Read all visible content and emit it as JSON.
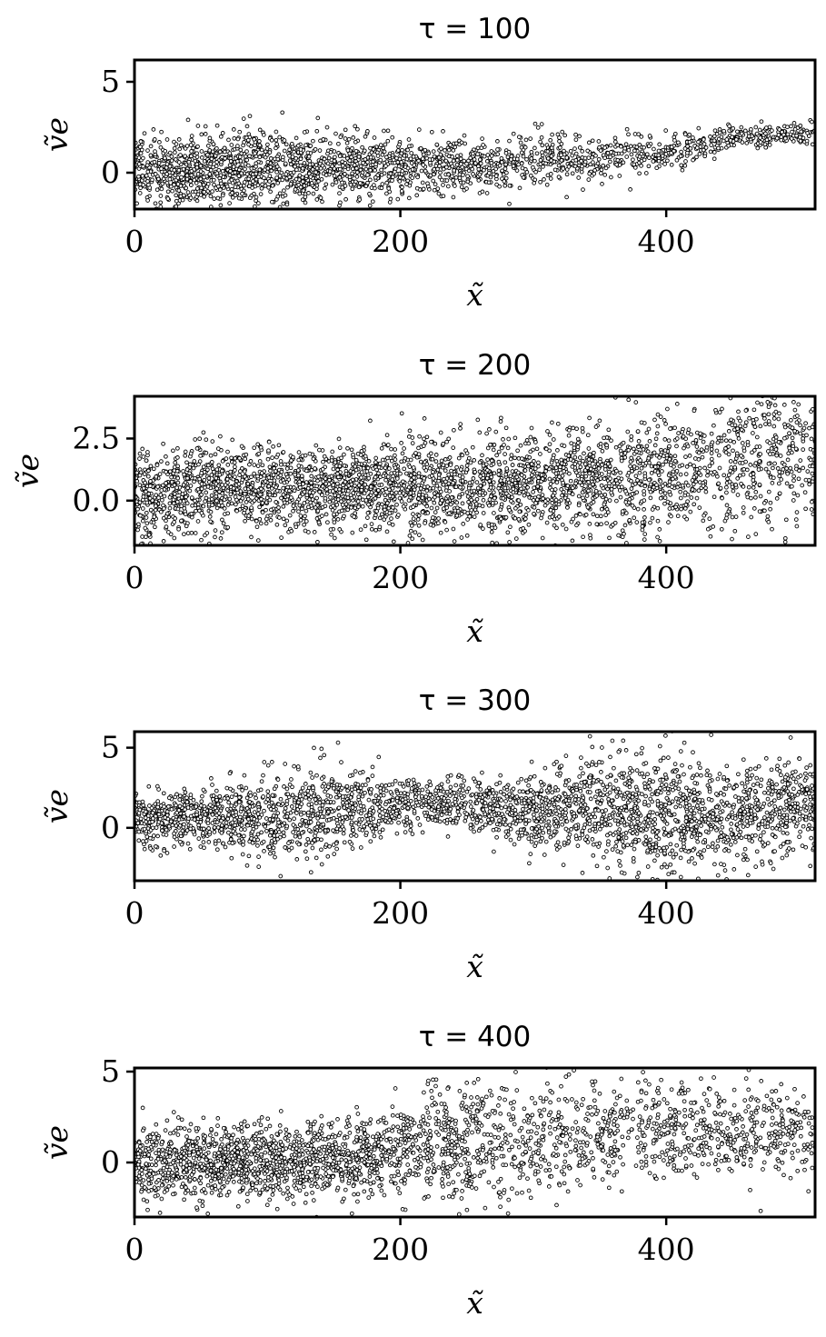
{
  "chart_data": [
    {
      "type": "scatter",
      "title": "τ = 100",
      "xlabel": "x̃",
      "ylabel": "ṽe",
      "xlim": [
        0,
        512
      ],
      "ylim": [
        -2.0,
        6.2
      ],
      "xticks": [
        "0",
        "200",
        "400"
      ],
      "yticks": [
        "0",
        "5"
      ],
      "marker": "small open circle",
      "series_profile": {
        "x": [
          0,
          50,
          100,
          150,
          200,
          250,
          300,
          350,
          400,
          450,
          500
        ],
        "center": [
          0.0,
          0.15,
          0.25,
          0.3,
          0.35,
          0.4,
          0.6,
          0.8,
          1.2,
          1.9,
          2.2
        ],
        "spread": [
          1.0,
          1.0,
          1.0,
          0.9,
          0.8,
          0.7,
          0.7,
          0.6,
          0.5,
          0.35,
          0.3
        ],
        "density": [
          1.0,
          1.0,
          1.0,
          0.9,
          0.7,
          0.6,
          0.5,
          0.45,
          0.4,
          0.35,
          0.35
        ]
      }
    },
    {
      "type": "scatter",
      "title": "τ = 200",
      "xlabel": "x̃",
      "ylabel": "ṽe",
      "xlim": [
        0,
        512
      ],
      "ylim": [
        -1.8,
        4.2
      ],
      "xticks": [
        "0",
        "200",
        "400"
      ],
      "yticks": [
        "0.0",
        "2.5"
      ],
      "marker": "small open circle",
      "series_profile": {
        "x": [
          0,
          50,
          100,
          150,
          200,
          250,
          300,
          350,
          400,
          450,
          500
        ],
        "center": [
          0.2,
          0.4,
          0.5,
          0.45,
          0.6,
          0.5,
          0.7,
          0.8,
          0.9,
          1.6,
          1.9
        ],
        "spread": [
          0.9,
          0.9,
          0.85,
          0.8,
          0.9,
          1.0,
          1.0,
          1.1,
          1.3,
          1.4,
          1.3
        ],
        "density": [
          1.0,
          1.0,
          1.0,
          1.0,
          1.0,
          1.0,
          1.0,
          0.9,
          0.8,
          0.7,
          0.7
        ]
      }
    },
    {
      "type": "scatter",
      "title": "τ = 300",
      "xlabel": "x̃",
      "ylabel": "ṽe",
      "xlim": [
        0,
        512
      ],
      "ylim": [
        -3.3,
        6.0
      ],
      "xticks": [
        "0",
        "200",
        "400"
      ],
      "yticks": [
        "0",
        "5"
      ],
      "marker": "small open circle",
      "series_profile": {
        "x": [
          0,
          50,
          100,
          150,
          200,
          250,
          300,
          350,
          400,
          450,
          500
        ],
        "center": [
          0.5,
          0.6,
          0.6,
          1.2,
          1.6,
          1.4,
          1.0,
          1.4,
          0.8,
          0.5,
          1.5
        ],
        "spread": [
          0.8,
          0.8,
          1.4,
          1.3,
          0.8,
          0.8,
          1.2,
          1.9,
          1.9,
          1.6,
          1.4
        ],
        "density": [
          1.0,
          0.9,
          0.9,
          0.8,
          0.7,
          0.6,
          0.8,
          0.9,
          0.9,
          0.8,
          0.8
        ]
      }
    },
    {
      "type": "scatter",
      "title": "τ = 400",
      "xlabel": "x̃",
      "ylabel": "ṽe",
      "xlim": [
        0,
        512
      ],
      "ylim": [
        -3.0,
        5.2
      ],
      "xticks": [
        "0",
        "200",
        "400"
      ],
      "yticks": [
        "0",
        "5"
      ],
      "marker": "small open circle",
      "series_profile": {
        "x": [
          0,
          50,
          100,
          150,
          200,
          250,
          300,
          350,
          400,
          450,
          500
        ],
        "center": [
          0.0,
          0.0,
          0.0,
          0.1,
          0.6,
          1.0,
          1.2,
          1.6,
          1.8,
          1.6,
          1.5
        ],
        "spread": [
          1.0,
          1.0,
          1.0,
          1.0,
          1.2,
          1.8,
          1.6,
          1.5,
          1.4,
          1.3,
          1.2
        ],
        "density": [
          1.0,
          1.0,
          1.0,
          0.95,
          0.7,
          0.8,
          0.5,
          0.5,
          0.5,
          0.5,
          0.5
        ]
      }
    }
  ]
}
